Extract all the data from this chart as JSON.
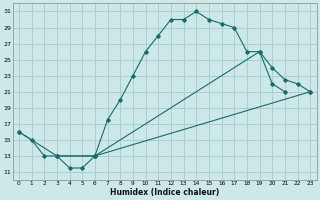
{
  "xlabel": "Humidex (Indice chaleur)",
  "bg_color": "#cce8e8",
  "grid_color": "#aacfcf",
  "line_color": "#1a6b6b",
  "line1_x": [
    0,
    1,
    2,
    3,
    4,
    5,
    6,
    7,
    8,
    9,
    10,
    11,
    12,
    13,
    14,
    15,
    16,
    17,
    18,
    19,
    20,
    21
  ],
  "line1_y": [
    16,
    15,
    13,
    13,
    11.5,
    11.5,
    13,
    17.5,
    20,
    23,
    26,
    28,
    30,
    30,
    31,
    30,
    29.5,
    29,
    26,
    26,
    22,
    21
  ],
  "line2_x": [
    0,
    3,
    6,
    19,
    20,
    21,
    22,
    23
  ],
  "line2_y": [
    16,
    13,
    13,
    26,
    24,
    22.5,
    22,
    21
  ],
  "line3_x": [
    3,
    6,
    23
  ],
  "line3_y": [
    13,
    13,
    21
  ],
  "ylim": [
    10,
    32
  ],
  "xlim": [
    -0.5,
    23.5
  ],
  "yticks": [
    11,
    13,
    15,
    17,
    19,
    21,
    23,
    25,
    27,
    29,
    31
  ],
  "xticks": [
    0,
    1,
    2,
    3,
    4,
    5,
    6,
    7,
    8,
    9,
    10,
    11,
    12,
    13,
    14,
    15,
    16,
    17,
    18,
    19,
    20,
    21,
    22,
    23
  ]
}
